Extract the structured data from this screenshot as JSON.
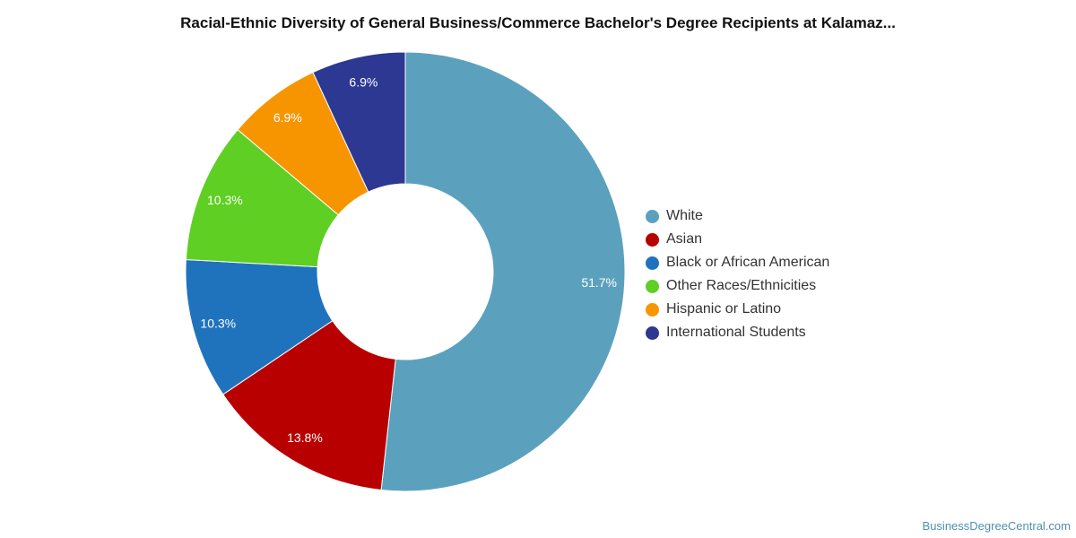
{
  "chart_data": {
    "type": "pie",
    "title": "Racial-Ethnic Diversity of General Business/Commerce Bachelor's Degree Recipients at Kalamaz...",
    "categories": [
      "White",
      "Asian",
      "Black or African American",
      "Other Races/Ethnicities",
      "Hispanic or Latino",
      "International Students"
    ],
    "values": [
      51.7,
      13.8,
      10.3,
      10.3,
      6.9,
      6.9
    ],
    "value_labels": [
      "51.7%",
      "13.8%",
      "10.3%",
      "10.3%",
      "6.9%",
      "6.9%"
    ],
    "colors": [
      "#5ba1be",
      "#b80000",
      "#1f73bd",
      "#5fcf23",
      "#f79500",
      "#2c3892"
    ],
    "donut": true,
    "legend_position": "right"
  },
  "watermark": "BusinessDegreeCentral.com"
}
